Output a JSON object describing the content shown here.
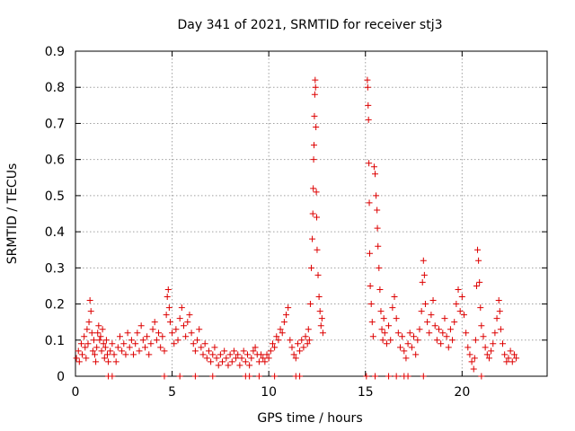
{
  "chart_data": {
    "type": "scatter",
    "title": "Day 341 of 2021, SRMTID for receiver stj3",
    "xlabel": "GPS time / hours",
    "ylabel": "SRMTID / TECUs",
    "xlim": [
      0,
      24.4
    ],
    "ylim": [
      0,
      0.9
    ],
    "xticks": [
      0,
      5,
      10,
      15,
      20
    ],
    "xtick_labels": [
      "0",
      "5",
      "10",
      "15",
      "20"
    ],
    "yticks": [
      0,
      0.1,
      0.2,
      0.3,
      0.4,
      0.5,
      0.6,
      0.7,
      0.8,
      0.9
    ],
    "ytick_labels": [
      "0",
      "0.1",
      "0.2",
      "0.3",
      "0.4",
      "0.5",
      "0.6",
      "0.7",
      "0.8",
      "0.9"
    ],
    "grid": true,
    "marker": "+",
    "colors": {
      "series": "#dd0000",
      "grid": "#a0a0a0",
      "axis": "#000000"
    },
    "series": [
      {
        "name": "stj3",
        "points": [
          [
            0.05,
            0.05
          ],
          [
            0.15,
            0.07
          ],
          [
            0.2,
            0.04
          ],
          [
            0.3,
            0.09
          ],
          [
            0.35,
            0.06
          ],
          [
            0.45,
            0.11
          ],
          [
            0.5,
            0.08
          ],
          [
            0.55,
            0.05
          ],
          [
            0.6,
            0.13
          ],
          [
            0.65,
            0.09
          ],
          [
            0.7,
            0.15
          ],
          [
            0.75,
            0.21
          ],
          [
            0.8,
            0.18
          ],
          [
            0.85,
            0.12
          ],
          [
            0.9,
            0.07
          ],
          [
            0.95,
            0.1
          ],
          [
            1.0,
            0.06
          ],
          [
            1.05,
            0.04
          ],
          [
            1.1,
            0.08
          ],
          [
            1.15,
            0.12
          ],
          [
            1.2,
            0.14
          ],
          [
            1.25,
            0.1
          ],
          [
            1.3,
            0.11
          ],
          [
            1.35,
            0.07
          ],
          [
            1.4,
            0.13
          ],
          [
            1.45,
            0.09
          ],
          [
            1.5,
            0.05
          ],
          [
            1.55,
            0.08
          ],
          [
            1.6,
            0.1
          ],
          [
            1.65,
            0.06
          ],
          [
            1.7,
            0.04
          ],
          [
            1.8,
            0.07
          ],
          [
            1.9,
            0.09
          ],
          [
            2.0,
            0.06
          ],
          [
            2.1,
            0.04
          ],
          [
            2.2,
            0.08
          ],
          [
            2.3,
            0.11
          ],
          [
            2.4,
            0.07
          ],
          [
            2.5,
            0.09
          ],
          [
            2.6,
            0.06
          ],
          [
            2.7,
            0.12
          ],
          [
            2.8,
            0.08
          ],
          [
            2.9,
            0.1
          ],
          [
            3.0,
            0.06
          ],
          [
            3.1,
            0.09
          ],
          [
            3.2,
            0.12
          ],
          [
            3.3,
            0.07
          ],
          [
            3.4,
            0.14
          ],
          [
            3.5,
            0.1
          ],
          [
            3.6,
            0.08
          ],
          [
            3.7,
            0.11
          ],
          [
            3.8,
            0.06
          ],
          [
            3.9,
            0.09
          ],
          [
            4.0,
            0.13
          ],
          [
            4.1,
            0.15
          ],
          [
            4.2,
            0.1
          ],
          [
            4.3,
            0.12
          ],
          [
            4.4,
            0.08
          ],
          [
            4.5,
            0.11
          ],
          [
            4.6,
            0.07
          ],
          [
            4.7,
            0.17
          ],
          [
            4.75,
            0.22
          ],
          [
            4.8,
            0.24
          ],
          [
            4.85,
            0.19
          ],
          [
            4.9,
            0.15
          ],
          [
            5.0,
            0.12
          ],
          [
            5.1,
            0.09
          ],
          [
            5.2,
            0.13
          ],
          [
            5.3,
            0.1
          ],
          [
            5.4,
            0.16
          ],
          [
            5.5,
            0.19
          ],
          [
            5.6,
            0.14
          ],
          [
            5.7,
            0.11
          ],
          [
            5.8,
            0.15
          ],
          [
            5.9,
            0.17
          ],
          [
            6.0,
            0.12
          ],
          [
            6.1,
            0.09
          ],
          [
            6.2,
            0.07
          ],
          [
            6.3,
            0.1
          ],
          [
            6.4,
            0.13
          ],
          [
            6.5,
            0.08
          ],
          [
            6.6,
            0.06
          ],
          [
            6.7,
            0.09
          ],
          [
            6.8,
            0.05
          ],
          [
            6.9,
            0.07
          ],
          [
            7.0,
            0.04
          ],
          [
            7.1,
            0.06
          ],
          [
            7.2,
            0.08
          ],
          [
            7.3,
            0.05
          ],
          [
            7.4,
            0.03
          ],
          [
            7.5,
            0.06
          ],
          [
            7.6,
            0.04
          ],
          [
            7.7,
            0.07
          ],
          [
            7.8,
            0.05
          ],
          [
            7.9,
            0.03
          ],
          [
            8.0,
            0.06
          ],
          [
            8.1,
            0.04
          ],
          [
            8.2,
            0.07
          ],
          [
            8.3,
            0.05
          ],
          [
            8.4,
            0.06
          ],
          [
            8.5,
            0.03
          ],
          [
            8.6,
            0.05
          ],
          [
            8.7,
            0.07
          ],
          [
            8.8,
            0.04
          ],
          [
            8.9,
            0.06
          ],
          [
            9.0,
            0.03
          ],
          [
            9.1,
            0.05
          ],
          [
            9.2,
            0.07
          ],
          [
            9.3,
            0.08
          ],
          [
            9.4,
            0.06
          ],
          [
            9.5,
            0.04
          ],
          [
            9.6,
            0.06
          ],
          [
            9.7,
            0.05
          ],
          [
            9.8,
            0.04
          ],
          [
            9.9,
            0.06
          ],
          [
            10.0,
            0.05
          ],
          [
            10.1,
            0.07
          ],
          [
            10.2,
            0.09
          ],
          [
            10.3,
            0.08
          ],
          [
            10.4,
            0.11
          ],
          [
            10.5,
            0.1
          ],
          [
            10.6,
            0.13
          ],
          [
            10.7,
            0.12
          ],
          [
            10.8,
            0.15
          ],
          [
            10.9,
            0.17
          ],
          [
            11.0,
            0.19
          ],
          [
            11.1,
            0.1
          ],
          [
            11.2,
            0.08
          ],
          [
            11.3,
            0.06
          ],
          [
            11.4,
            0.05
          ],
          [
            11.5,
            0.09
          ],
          [
            11.6,
            0.07
          ],
          [
            11.7,
            0.1
          ],
          [
            11.8,
            0.08
          ],
          [
            11.9,
            0.11
          ],
          [
            12.0,
            0.09
          ],
          [
            12.05,
            0.13
          ],
          [
            12.1,
            0.1
          ],
          [
            12.15,
            0.2
          ],
          [
            12.2,
            0.3
          ],
          [
            12.25,
            0.38
          ],
          [
            12.28,
            0.45
          ],
          [
            12.3,
            0.52
          ],
          [
            12.32,
            0.6
          ],
          [
            12.34,
            0.64
          ],
          [
            12.36,
            0.72
          ],
          [
            12.38,
            0.78
          ],
          [
            12.4,
            0.82
          ],
          [
            12.42,
            0.8
          ],
          [
            12.44,
            0.69
          ],
          [
            12.46,
            0.51
          ],
          [
            12.48,
            0.44
          ],
          [
            12.5,
            0.35
          ],
          [
            12.55,
            0.28
          ],
          [
            12.6,
            0.22
          ],
          [
            12.65,
            0.18
          ],
          [
            12.7,
            0.14
          ],
          [
            12.75,
            0.16
          ],
          [
            12.8,
            0.12
          ],
          [
            15.1,
            0.82
          ],
          [
            15.12,
            0.8
          ],
          [
            15.14,
            0.75
          ],
          [
            15.16,
            0.71
          ],
          [
            15.18,
            0.59
          ],
          [
            15.2,
            0.48
          ],
          [
            15.22,
            0.34
          ],
          [
            15.25,
            0.25
          ],
          [
            15.3,
            0.2
          ],
          [
            15.35,
            0.15
          ],
          [
            15.4,
            0.11
          ],
          [
            15.45,
            0.58
          ],
          [
            15.5,
            0.56
          ],
          [
            15.55,
            0.5
          ],
          [
            15.6,
            0.46
          ],
          [
            15.62,
            0.41
          ],
          [
            15.65,
            0.36
          ],
          [
            15.7,
            0.3
          ],
          [
            15.75,
            0.24
          ],
          [
            15.8,
            0.18
          ],
          [
            15.85,
            0.13
          ],
          [
            15.9,
            0.1
          ],
          [
            15.95,
            0.16
          ],
          [
            16.0,
            0.12
          ],
          [
            16.1,
            0.09
          ],
          [
            16.2,
            0.14
          ],
          [
            16.3,
            0.1
          ],
          [
            16.4,
            0.19
          ],
          [
            16.5,
            0.22
          ],
          [
            16.6,
            0.16
          ],
          [
            16.7,
            0.12
          ],
          [
            16.8,
            0.08
          ],
          [
            16.9,
            0.11
          ],
          [
            17.0,
            0.07
          ],
          [
            17.1,
            0.05
          ],
          [
            17.2,
            0.09
          ],
          [
            17.3,
            0.12
          ],
          [
            17.4,
            0.08
          ],
          [
            17.5,
            0.11
          ],
          [
            17.6,
            0.06
          ],
          [
            17.7,
            0.1
          ],
          [
            17.8,
            0.13
          ],
          [
            17.9,
            0.18
          ],
          [
            17.95,
            0.26
          ],
          [
            18.0,
            0.32
          ],
          [
            18.05,
            0.28
          ],
          [
            18.1,
            0.2
          ],
          [
            18.2,
            0.15
          ],
          [
            18.3,
            0.12
          ],
          [
            18.4,
            0.17
          ],
          [
            18.5,
            0.21
          ],
          [
            18.6,
            0.14
          ],
          [
            18.7,
            0.1
          ],
          [
            18.8,
            0.13
          ],
          [
            18.9,
            0.09
          ],
          [
            19.0,
            0.12
          ],
          [
            19.1,
            0.16
          ],
          [
            19.2,
            0.11
          ],
          [
            19.3,
            0.08
          ],
          [
            19.4,
            0.13
          ],
          [
            19.5,
            0.1
          ],
          [
            19.6,
            0.15
          ],
          [
            19.7,
            0.2
          ],
          [
            19.8,
            0.24
          ],
          [
            19.9,
            0.18
          ],
          [
            20.0,
            0.22
          ],
          [
            20.1,
            0.17
          ],
          [
            20.2,
            0.12
          ],
          [
            20.3,
            0.08
          ],
          [
            20.4,
            0.06
          ],
          [
            20.5,
            0.04
          ],
          [
            20.6,
            0.02
          ],
          [
            20.65,
            0.05
          ],
          [
            20.7,
            0.1
          ],
          [
            20.75,
            0.25
          ],
          [
            20.8,
            0.35
          ],
          [
            20.85,
            0.32
          ],
          [
            20.9,
            0.26
          ],
          [
            20.95,
            0.19
          ],
          [
            21.0,
            0.14
          ],
          [
            21.1,
            0.11
          ],
          [
            21.2,
            0.08
          ],
          [
            21.3,
            0.06
          ],
          [
            21.4,
            0.05
          ],
          [
            21.5,
            0.07
          ],
          [
            21.6,
            0.09
          ],
          [
            21.7,
            0.12
          ],
          [
            21.8,
            0.16
          ],
          [
            21.9,
            0.21
          ],
          [
            21.95,
            0.18
          ],
          [
            22.0,
            0.13
          ],
          [
            22.1,
            0.09
          ],
          [
            22.2,
            0.06
          ],
          [
            22.3,
            0.04
          ],
          [
            22.4,
            0.05
          ],
          [
            22.5,
            0.07
          ],
          [
            22.6,
            0.04
          ],
          [
            22.7,
            0.06
          ],
          [
            22.8,
            0.05
          ],
          [
            1.7,
            0.0
          ],
          [
            1.9,
            0.0
          ],
          [
            4.6,
            0.0
          ],
          [
            5.4,
            0.0
          ],
          [
            6.2,
            0.0
          ],
          [
            7.1,
            0.0
          ],
          [
            8.8,
            0.0
          ],
          [
            9.0,
            0.0
          ],
          [
            9.5,
            0.0
          ],
          [
            10.3,
            0.0
          ],
          [
            11.4,
            0.0
          ],
          [
            11.6,
            0.0
          ],
          [
            15.05,
            0.0
          ],
          [
            15.5,
            0.0
          ],
          [
            16.2,
            0.0
          ],
          [
            16.6,
            0.0
          ],
          [
            17.0,
            0.0
          ],
          [
            17.2,
            0.0
          ],
          [
            18.0,
            0.0
          ],
          [
            21.0,
            0.0
          ]
        ]
      }
    ]
  }
}
